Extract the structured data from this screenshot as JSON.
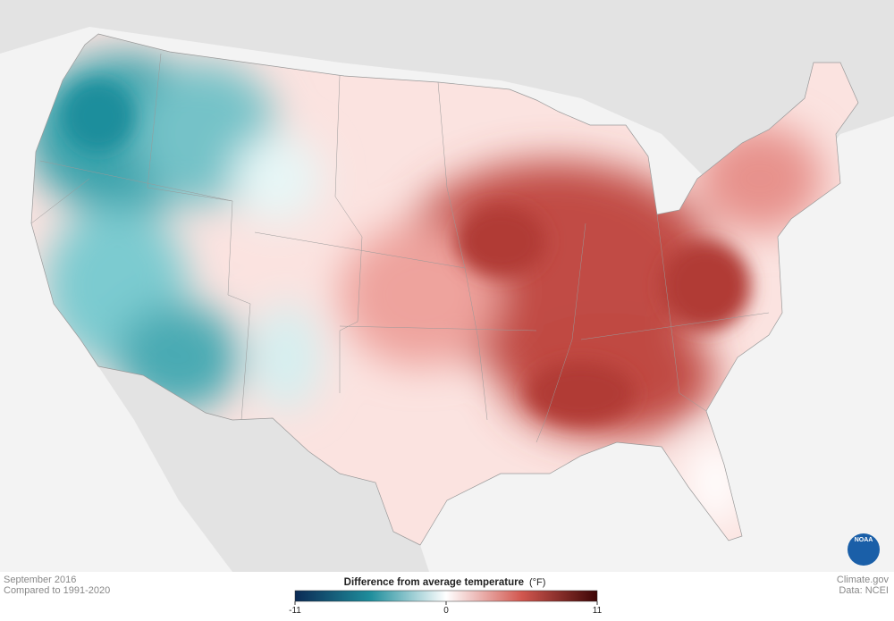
{
  "footer": {
    "date": "September 2016",
    "baseline": "Compared to 1991-2020",
    "credit": "Climate.gov",
    "source": "Data: NCEI"
  },
  "legend": {
    "title": "Difference from average temperature",
    "unit": "(°F)",
    "min": -11,
    "max": 11,
    "ticks": [
      -11,
      0,
      11
    ],
    "colors": [
      "#0b2a55",
      "#1f8e9c",
      "#ffffff",
      "#d2574f",
      "#3d0505"
    ]
  },
  "logo": "NOAA"
}
